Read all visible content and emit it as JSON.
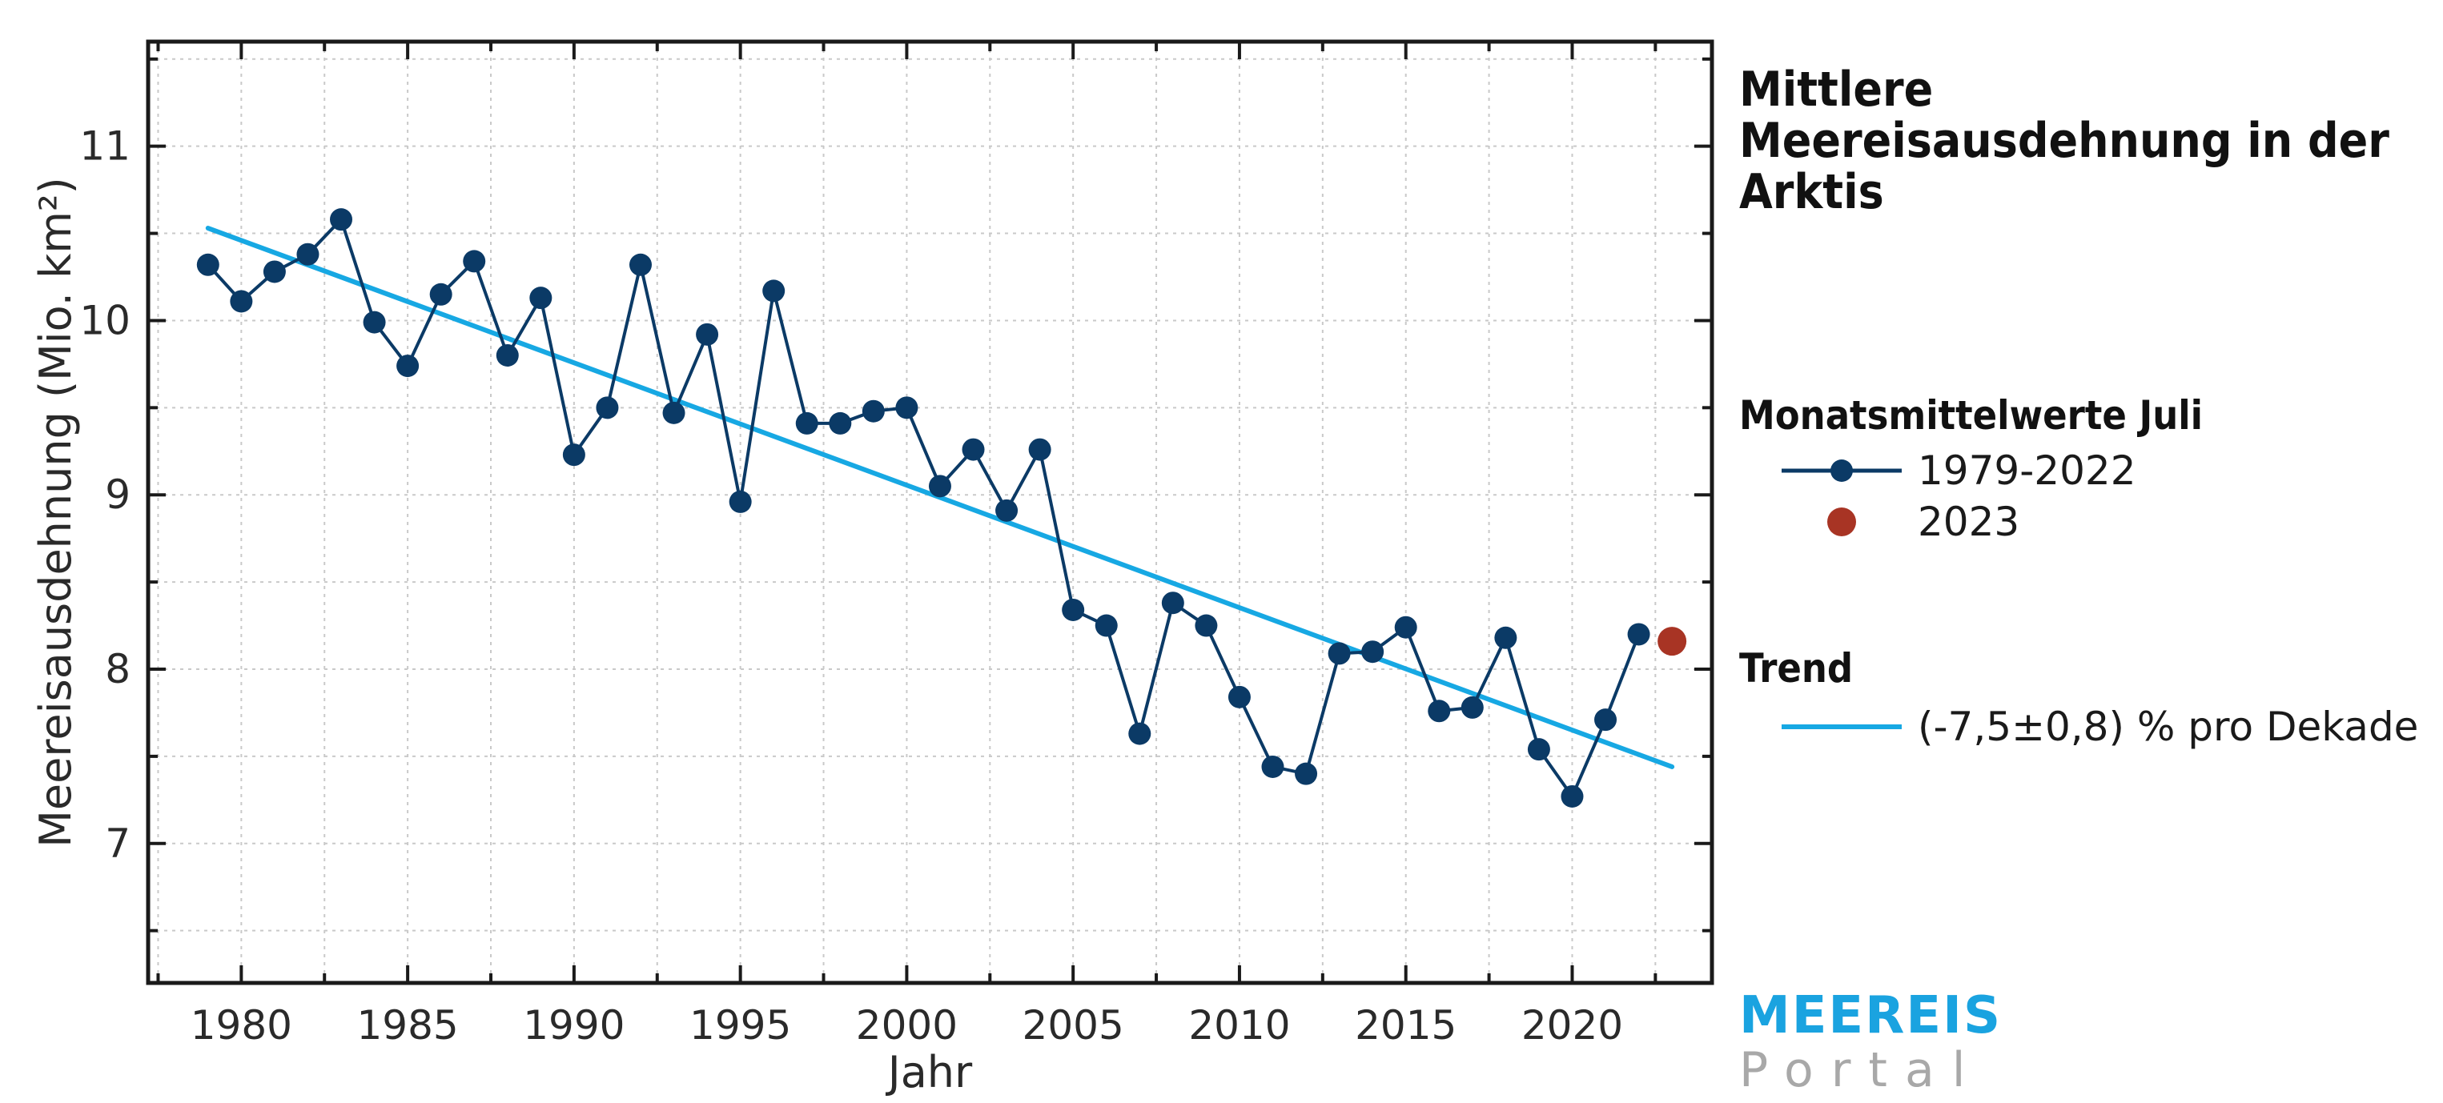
{
  "title": "Mittlere Meereisausdehnung in der Arktis",
  "legend": {
    "section1_title": "Monatsmittelwerte Juli",
    "entry_series": "1979-2022",
    "entry_highlight": "2023",
    "section2_title": "Trend",
    "entry_trend": "(-7,5±0,8) % pro Dekade"
  },
  "logo": {
    "line1": "MEEREIS",
    "line2": "Portal"
  },
  "colors": {
    "series": "#0b3a66",
    "highlight": "#a83424",
    "trend": "#17a8e3",
    "grid": "#c9c9c9",
    "logo_primary": "#1aa3e0",
    "logo_secondary": "#a8a8a8"
  },
  "chart_data": {
    "type": "line",
    "xlabel": "Jahr",
    "ylabel": "Meereisausdehnung (Mio. km²)",
    "xlim": [
      1977.2,
      2024.2
    ],
    "ylim": [
      6.2,
      11.6
    ],
    "xticks": [
      1980,
      1985,
      1990,
      1995,
      2000,
      2005,
      2010,
      2015,
      2020
    ],
    "yticks": [
      7,
      8,
      9,
      10,
      11
    ],
    "grid": true,
    "series": [
      {
        "name": "1979-2022",
        "x": [
          1979,
          1980,
          1981,
          1982,
          1983,
          1984,
          1985,
          1986,
          1987,
          1988,
          1989,
          1990,
          1991,
          1992,
          1993,
          1994,
          1995,
          1996,
          1997,
          1998,
          1999,
          2000,
          2001,
          2002,
          2003,
          2004,
          2005,
          2006,
          2007,
          2008,
          2009,
          2010,
          2011,
          2012,
          2013,
          2014,
          2015,
          2016,
          2017,
          2018,
          2019,
          2020,
          2021,
          2022
        ],
        "y": [
          10.32,
          10.11,
          10.28,
          10.38,
          10.58,
          9.99,
          9.74,
          10.15,
          10.34,
          9.8,
          10.13,
          9.23,
          9.5,
          10.32,
          9.47,
          9.92,
          8.96,
          10.17,
          9.41,
          9.41,
          9.48,
          9.5,
          9.05,
          9.26,
          8.91,
          9.26,
          8.34,
          8.25,
          7.63,
          8.38,
          8.25,
          7.84,
          7.44,
          7.4,
          8.09,
          8.1,
          8.24,
          7.76,
          7.78,
          8.18,
          7.54,
          7.27,
          7.71,
          8.2
        ]
      },
      {
        "name": "2023",
        "x": [
          2023
        ],
        "y": [
          8.16
        ]
      },
      {
        "name": "(-7,5±0,8) % pro Dekade",
        "x": [
          1979,
          2023
        ],
        "y": [
          10.53,
          7.44
        ]
      }
    ]
  }
}
